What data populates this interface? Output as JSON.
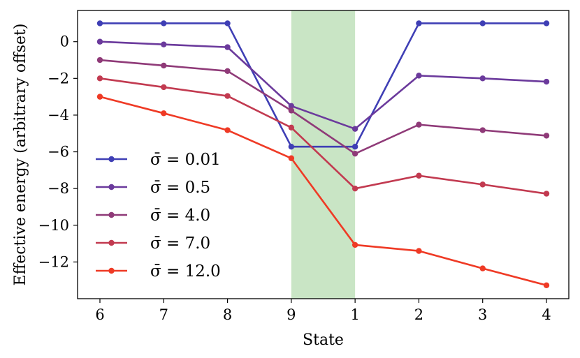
{
  "chart_data": {
    "type": "line",
    "xlabel": "State",
    "ylabel": "Effective energy (arbitrary offset)",
    "categories": [
      "6",
      "7",
      "8",
      "9",
      "1",
      "2",
      "3",
      "4"
    ],
    "ylim": [
      -14,
      1.7
    ],
    "yticks": [
      0,
      -2,
      -4,
      -6,
      -8,
      -10,
      -12
    ],
    "ytick_labels": [
      "0",
      "−2",
      "−4",
      "−6",
      "−8",
      "−10",
      "−12"
    ],
    "shaded_region": {
      "from": "9",
      "to": "1",
      "color": "#c9e5c5"
    },
    "legend_position": "left",
    "grid": false,
    "series": [
      {
        "name": "σ̄ = 0.01",
        "color": "#3f3fb5",
        "values": [
          1.0,
          1.0,
          1.0,
          -5.72,
          -5.72,
          1.0,
          1.0,
          1.0
        ]
      },
      {
        "name": "σ̄ = 0.5",
        "color": "#6b3a9c",
        "values": [
          0.0,
          -0.15,
          -0.3,
          -3.5,
          -4.75,
          -1.85,
          -2.0,
          -2.18
        ]
      },
      {
        "name": "σ̄ = 4.0",
        "color": "#8f3a78",
        "values": [
          -1.0,
          -1.3,
          -1.6,
          -3.75,
          -6.1,
          -4.52,
          -4.82,
          -5.12
        ]
      },
      {
        "name": "σ̄ = 7.0",
        "color": "#c23a50",
        "values": [
          -2.0,
          -2.48,
          -2.96,
          -4.68,
          -8.0,
          -7.3,
          -7.78,
          -8.28
        ]
      },
      {
        "name": "σ̄ = 12.0",
        "color": "#ef3a25",
        "values": [
          -3.0,
          -3.9,
          -4.82,
          -6.35,
          -11.07,
          -11.4,
          -12.35,
          -13.27
        ]
      }
    ]
  }
}
